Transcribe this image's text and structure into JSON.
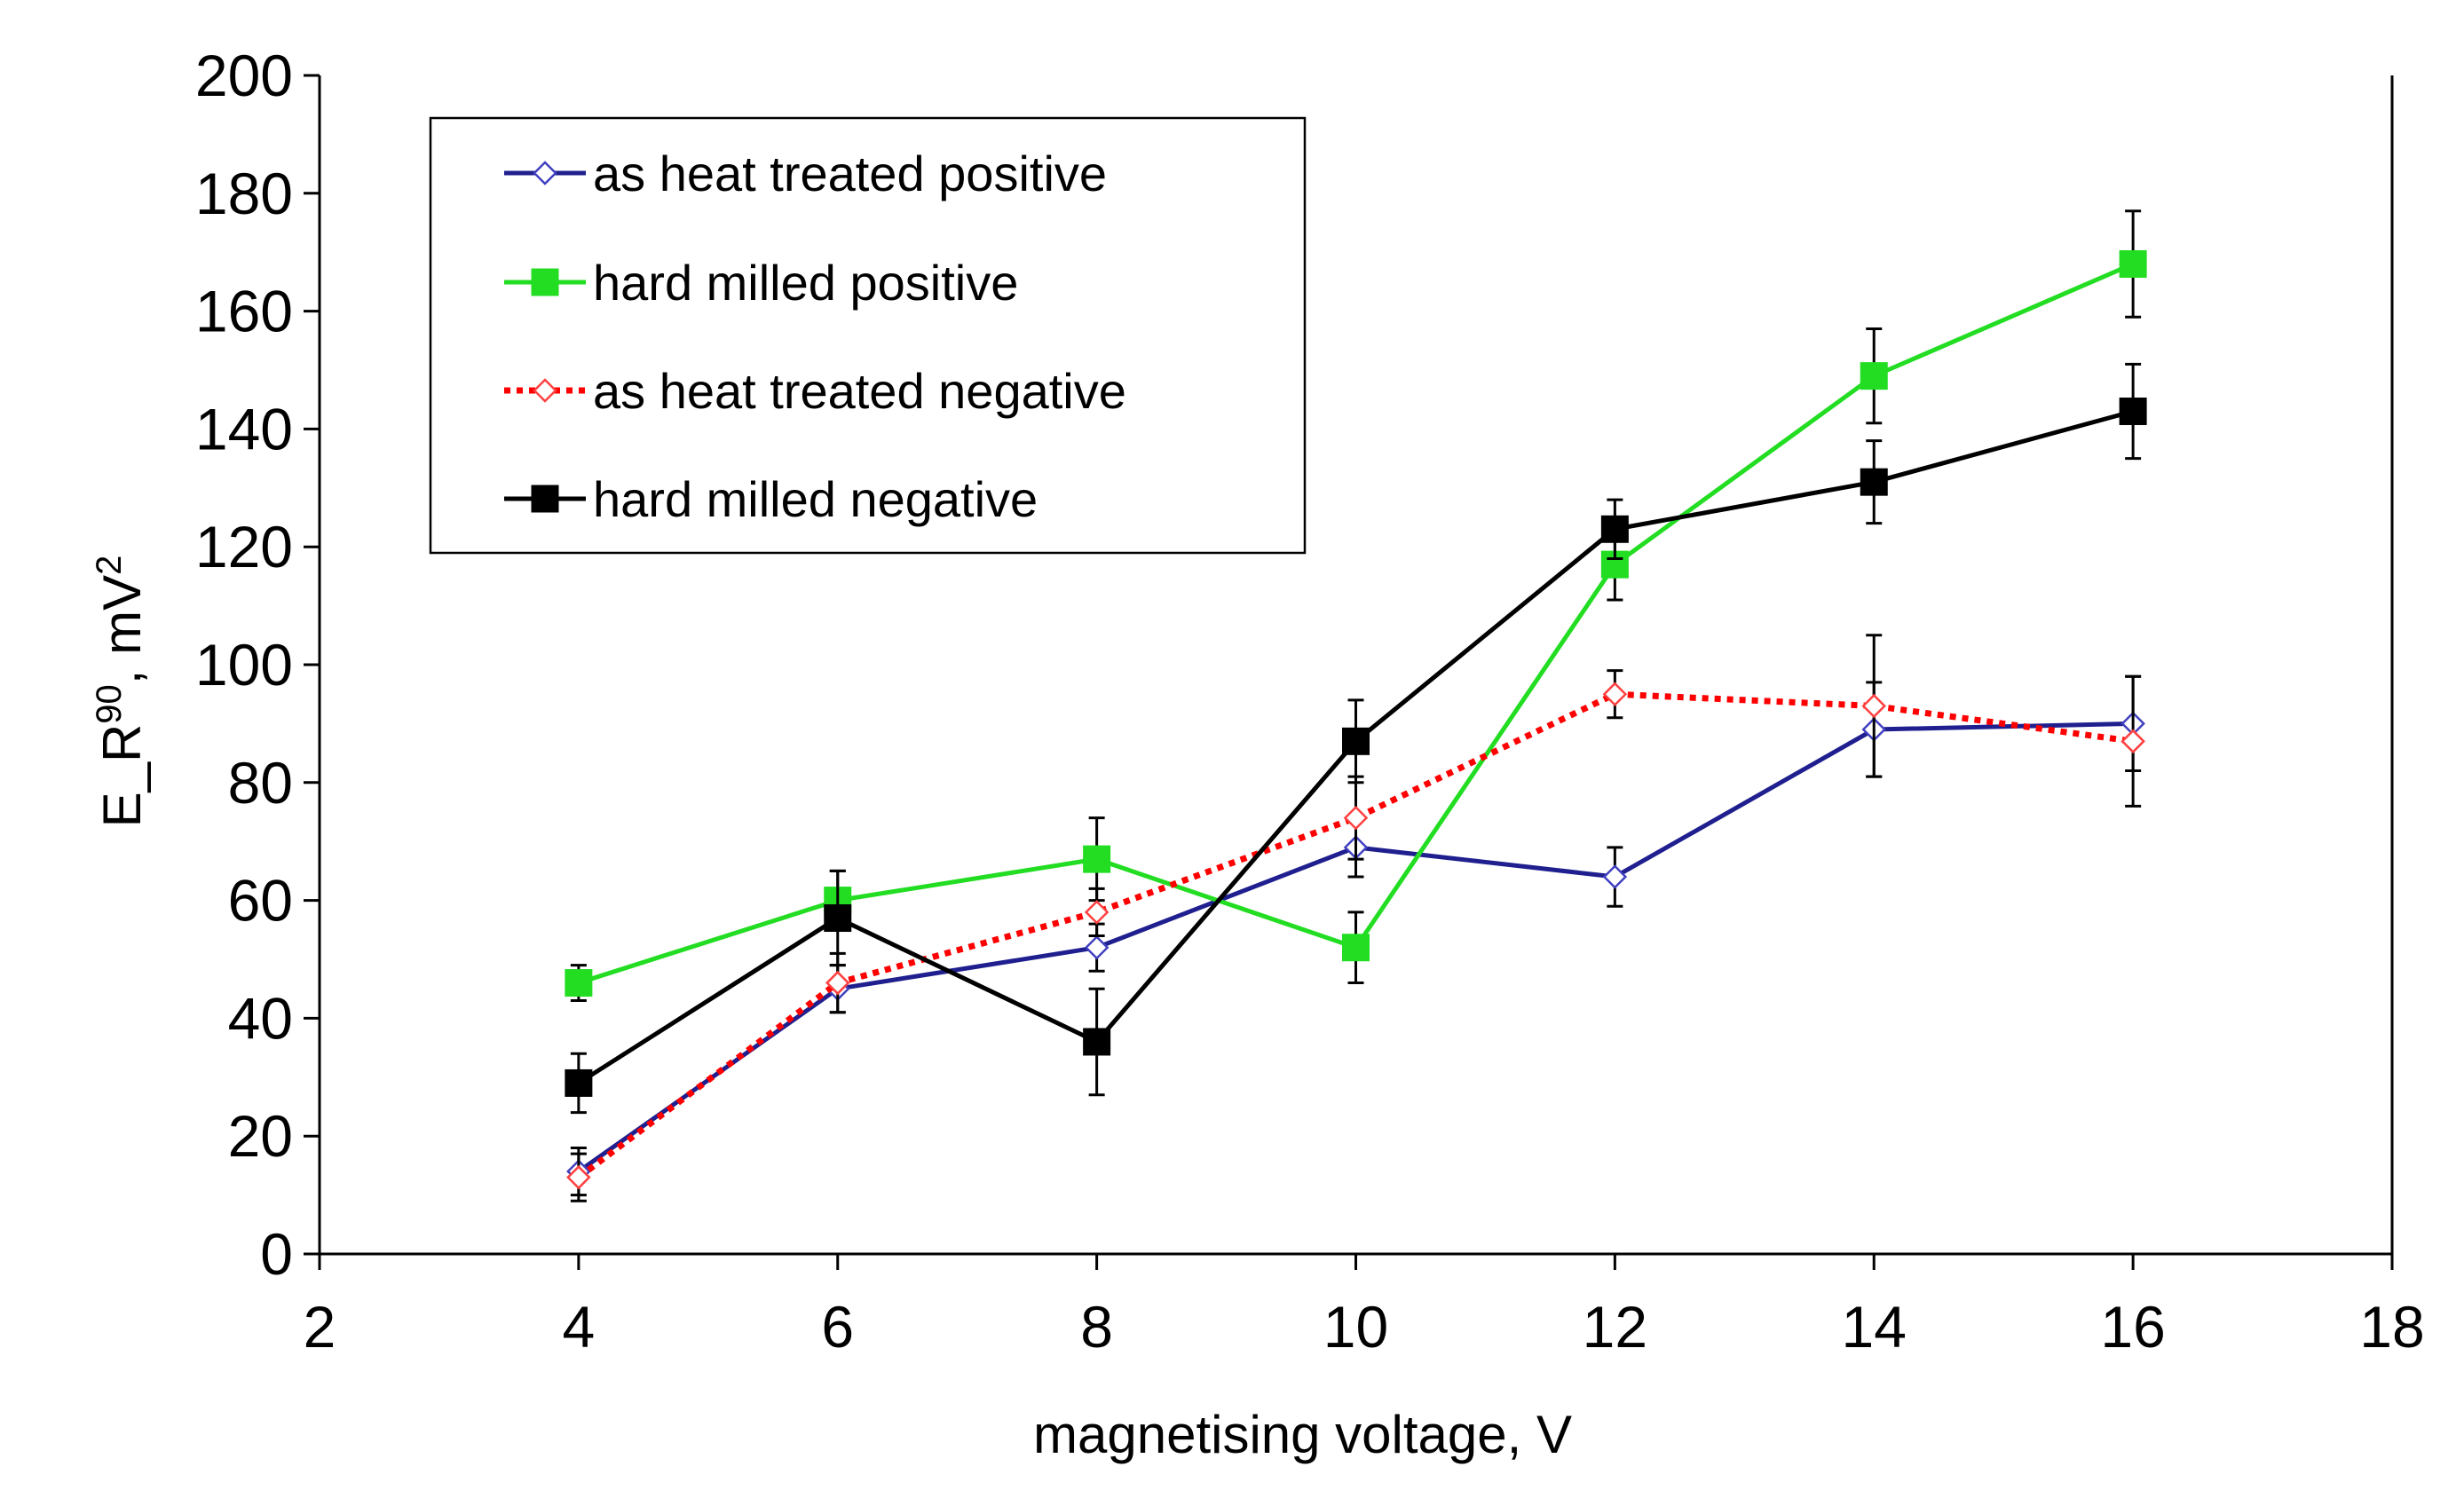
{
  "chart_data": {
    "type": "line",
    "title": "",
    "xlabel": "magnetising voltage, V",
    "ylabel": {
      "prefix": "E_R",
      "superscript": "90",
      "suffix": ", mV",
      "unit_superscript": "2"
    },
    "xlim": [
      2,
      18
    ],
    "ylim": [
      0,
      200
    ],
    "xticks": [
      2,
      4,
      6,
      8,
      10,
      12,
      14,
      16,
      18
    ],
    "yticks": [
      0,
      20,
      40,
      60,
      80,
      100,
      120,
      140,
      160,
      180,
      200
    ],
    "grid": false,
    "legend_position": "top-left",
    "x": [
      4,
      6,
      8,
      10,
      12,
      14,
      16
    ],
    "series": [
      {
        "name": "as heat treated positive",
        "color": "#1f1f8f",
        "dash": "solid",
        "marker": "diamond-open",
        "marker_color": "#4040c0",
        "values": [
          14,
          45,
          52,
          69,
          64,
          89,
          90
        ],
        "errors": [
          4,
          4,
          4,
          5,
          5,
          8,
          8
        ]
      },
      {
        "name": "hard milled positive",
        "color": "#22dd22",
        "dash": "solid",
        "marker": "square-filled",
        "marker_color": "#22dd22",
        "values": [
          46,
          60,
          67,
          52,
          117,
          149,
          168
        ],
        "errors": [
          3,
          5,
          7,
          6,
          6,
          8,
          9
        ]
      },
      {
        "name": "as heat treated negative",
        "color": "#ff0000",
        "dash": "dotted",
        "marker": "diamond-open",
        "marker_color": "#ff4040",
        "values": [
          13,
          46,
          58,
          74,
          95,
          93,
          87
        ],
        "errors": [
          4,
          5,
          4,
          7,
          4,
          12,
          11
        ]
      },
      {
        "name": "hard milled negative",
        "color": "#000000",
        "dash": "solid",
        "marker": "square-filled",
        "marker_color": "#000000",
        "values": [
          29,
          57,
          36,
          87,
          123,
          131,
          143
        ],
        "errors": [
          5,
          8,
          9,
          7,
          5,
          7,
          8
        ]
      }
    ]
  }
}
